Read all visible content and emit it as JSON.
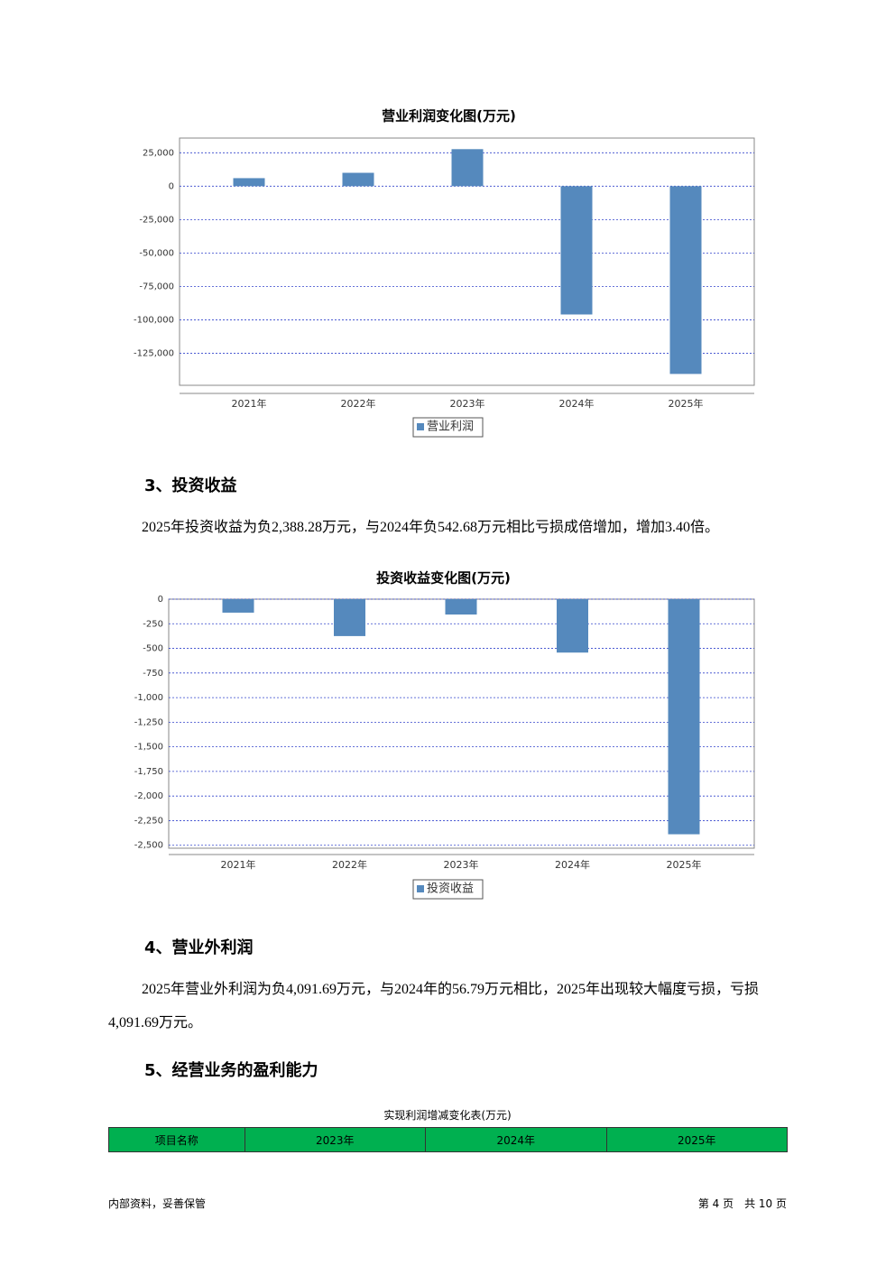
{
  "chart_data": [
    {
      "type": "bar",
      "title": "营业利润变化图(万元)",
      "categories": [
        "2021年",
        "2022年",
        "2023年",
        "2024年",
        "2025年"
      ],
      "series": [
        {
          "name": "营业利润",
          "color": "#5589bd",
          "values": [
            6000,
            10000,
            27700,
            -96000,
            -140500
          ]
        }
      ],
      "ylim": [
        -149000,
        36000
      ],
      "yticks": [
        {
          "value": 25000,
          "label": "25,000"
        },
        0,
        {
          "value": -25000,
          "label": "-25,000"
        },
        {
          "value": -50000,
          "label": "-50,000"
        },
        {
          "value": -75000,
          "label": "-75,000"
        },
        {
          "value": -100000,
          "label": "-100,000"
        },
        {
          "value": -125000,
          "label": "-125,000"
        }
      ],
      "grid": true
    },
    {
      "type": "bar",
      "title": "投资收益变化图(万元)",
      "categories": [
        "2021年",
        "2022年",
        "2023年",
        "2024年",
        "2025年"
      ],
      "series": [
        {
          "name": "投资收益",
          "color": "#5589bd",
          "values": [
            -137,
            -375,
            -156,
            -542.68,
            -2388.28
          ]
        }
      ],
      "ylim": [
        -2530,
        0
      ],
      "yticks": [
        0,
        -250,
        -500,
        -750,
        {
          "value": -1000,
          "label": "-1,000"
        },
        {
          "value": -1250,
          "label": "-1,250"
        },
        {
          "value": -1500,
          "label": "-1,500"
        },
        {
          "value": -1750,
          "label": "-1,750"
        },
        {
          "value": -2000,
          "label": "-2,000"
        },
        {
          "value": -2250,
          "label": "-2,250"
        },
        {
          "value": -2500,
          "label": "-2,500"
        }
      ],
      "grid": true
    }
  ],
  "sections": [
    {
      "heading": "3、投资收益",
      "text": "2025年投资收益为负2,388.28万元，与2024年负542.68万元相比亏损成倍增加，增加3.40倍。"
    },
    {
      "heading": "4、营业外利润",
      "text": "2025年营业外利润为负4,091.69万元，与2024年的56.79万元相比，2025年出现较大幅度亏损，亏损4,091.69万元。"
    },
    {
      "heading": "5、经营业务的盈利能力"
    }
  ],
  "table": {
    "title": "实现利润增减变化表(万元)",
    "header": [
      "项目名称",
      "2023年",
      "2024年",
      "2025年"
    ]
  },
  "footer": {
    "left": "内部资料，妥善保管",
    "right": "第 4 页　共 10 页"
  }
}
